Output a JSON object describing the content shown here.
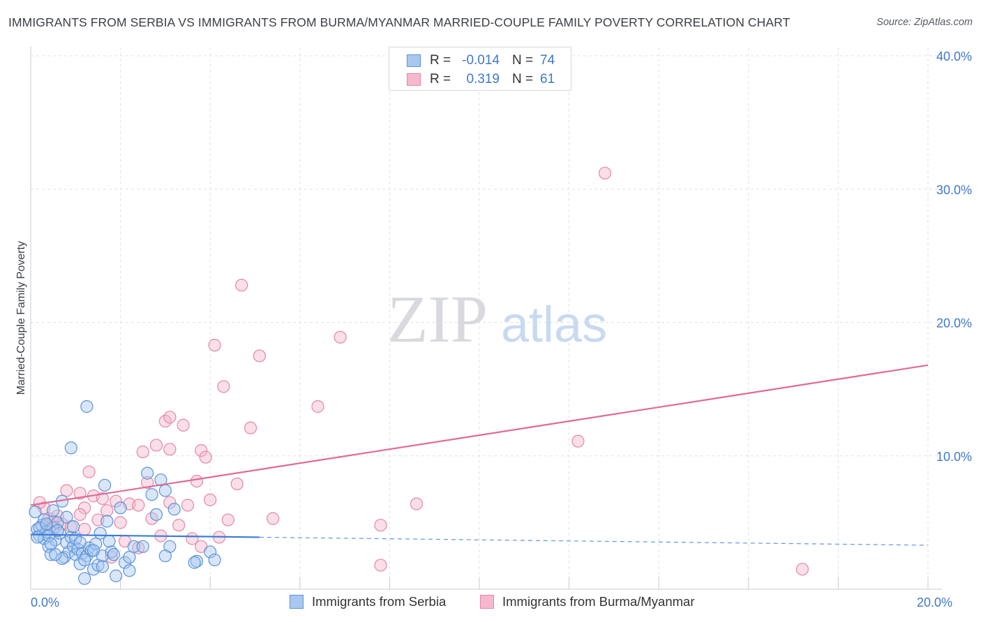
{
  "title": "IMMIGRANTS FROM SERBIA VS IMMIGRANTS FROM BURMA/MYANMAR MARRIED-COUPLE FAMILY POVERTY CORRELATION CHART",
  "source": "Source: ZipAtlas.com",
  "watermark": {
    "zip": "ZIP",
    "atlas": "atlas"
  },
  "legend": {
    "r_label": "R =",
    "n_label": "N =",
    "rows": [
      {
        "r": "-0.014",
        "n": "74"
      },
      {
        "r": "0.319",
        "n": "61"
      }
    ]
  },
  "colors": {
    "serbia_fill": "#a8c8f0",
    "serbia_stroke": "#5b93d8",
    "serbia_line": "#3a7bd5",
    "burma_fill": "#f5b8cc",
    "burma_stroke": "#e486a6",
    "burma_line": "#e06a94",
    "grid": "#dfe2e6",
    "tick_text": "#3f78c9"
  },
  "chart_data": {
    "type": "scatter",
    "title": "IMMIGRANTS FROM SERBIA VS IMMIGRANTS FROM BURMA/MYANMAR MARRIED-COUPLE FAMILY POVERTY CORRELATION CHART",
    "xlabel": "",
    "ylabel": "Married-Couple Family Poverty",
    "xlim": [
      0,
      20
    ],
    "ylim": [
      0,
      40
    ],
    "x_ticks": [
      0,
      2,
      4,
      6,
      8,
      10,
      12,
      14,
      16,
      18,
      20
    ],
    "x_tick_labels": [
      "0.0%",
      "",
      "",
      "",
      "",
      "",
      "",
      "",
      "",
      "",
      "20.0%"
    ],
    "y_ticks": [
      10,
      20,
      30,
      40
    ],
    "y_tick_labels": [
      "10.0%",
      "20.0%",
      "30.0%",
      "40.0%"
    ],
    "grid": true,
    "series": [
      {
        "name": "Immigrants from Serbia",
        "r": -0.014,
        "n": 74,
        "trend": {
          "solid": [
            [
              0,
              4.1
            ],
            [
              5.1,
              3.9
            ]
          ],
          "dashed": [
            [
              5.1,
              3.9
            ],
            [
              20,
              3.3
            ]
          ]
        },
        "points": [
          [
            0.1,
            5.8
          ],
          [
            0.15,
            4.5
          ],
          [
            0.2,
            4.0
          ],
          [
            0.25,
            4.8
          ],
          [
            0.3,
            3.8
          ],
          [
            0.35,
            4.3
          ],
          [
            0.4,
            3.2
          ],
          [
            0.45,
            2.6
          ],
          [
            0.5,
            4.6
          ],
          [
            0.55,
            3.7
          ],
          [
            0.6,
            5.0
          ],
          [
            0.65,
            4.2
          ],
          [
            0.7,
            6.6
          ],
          [
            0.75,
            2.4
          ],
          [
            0.8,
            3.5
          ],
          [
            0.85,
            2.8
          ],
          [
            0.9,
            3.9
          ],
          [
            0.95,
            3.2
          ],
          [
            1.0,
            2.6
          ],
          [
            1.05,
            3.0
          ],
          [
            1.1,
            1.9
          ],
          [
            1.15,
            2.7
          ],
          [
            1.2,
            0.8
          ],
          [
            1.25,
            2.5
          ],
          [
            1.3,
            3.1
          ],
          [
            1.35,
            2.9
          ],
          [
            1.4,
            1.5
          ],
          [
            1.45,
            3.4
          ],
          [
            1.5,
            1.8
          ],
          [
            1.55,
            4.2
          ],
          [
            1.6,
            2.5
          ],
          [
            1.65,
            7.8
          ],
          [
            1.7,
            5.1
          ],
          [
            1.75,
            3.6
          ],
          [
            1.8,
            2.8
          ],
          [
            1.25,
            13.7
          ],
          [
            0.9,
            10.6
          ],
          [
            1.9,
            1.0
          ],
          [
            2.0,
            6.1
          ],
          [
            2.1,
            2.0
          ],
          [
            2.2,
            1.4
          ],
          [
            2.3,
            3.2
          ],
          [
            2.5,
            3.2
          ],
          [
            2.6,
            8.7
          ],
          [
            2.7,
            7.1
          ],
          [
            2.8,
            5.6
          ],
          [
            2.9,
            8.2
          ],
          [
            3.0,
            7.4
          ],
          [
            3.1,
            3.2
          ],
          [
            3.2,
            6.0
          ],
          [
            3.0,
            2.5
          ],
          [
            2.2,
            2.4
          ],
          [
            3.7,
            2.1
          ],
          [
            3.65,
            2.0
          ],
          [
            0.5,
            5.9
          ],
          [
            0.6,
            4.4
          ],
          [
            0.4,
            4.0
          ],
          [
            0.3,
            5.2
          ],
          [
            0.8,
            5.4
          ],
          [
            1.0,
            3.8
          ],
          [
            0.2,
            4.6
          ],
          [
            0.15,
            3.9
          ],
          [
            1.2,
            2.2
          ],
          [
            1.4,
            2.9
          ],
          [
            1.6,
            1.7
          ],
          [
            0.7,
            2.3
          ],
          [
            0.55,
            2.6
          ],
          [
            1.1,
            3.5
          ],
          [
            0.95,
            4.7
          ],
          [
            0.45,
            3.4
          ],
          [
            0.35,
            4.9
          ],
          [
            4.0,
            2.8
          ],
          [
            4.1,
            2.2
          ],
          [
            1.85,
            2.6
          ]
        ]
      },
      {
        "name": "Immigrants from Burma/Myanmar",
        "r": 0.319,
        "n": 61,
        "trend": {
          "solid": [
            [
              0,
              6.3
            ],
            [
              20,
              16.8
            ]
          ]
        },
        "points": [
          [
            12.8,
            31.2
          ],
          [
            4.7,
            22.8
          ],
          [
            6.9,
            18.9
          ],
          [
            4.1,
            18.3
          ],
          [
            5.1,
            17.5
          ],
          [
            4.3,
            15.2
          ],
          [
            6.4,
            13.7
          ],
          [
            3.0,
            12.6
          ],
          [
            3.1,
            12.9
          ],
          [
            3.4,
            12.3
          ],
          [
            4.9,
            12.1
          ],
          [
            12.2,
            11.1
          ],
          [
            2.8,
            10.8
          ],
          [
            3.1,
            10.5
          ],
          [
            3.8,
            10.4
          ],
          [
            2.5,
            10.3
          ],
          [
            3.9,
            9.9
          ],
          [
            1.3,
            8.8
          ],
          [
            2.6,
            8.0
          ],
          [
            3.7,
            8.1
          ],
          [
            4.6,
            7.9
          ],
          [
            0.8,
            7.4
          ],
          [
            1.1,
            7.2
          ],
          [
            1.4,
            7.0
          ],
          [
            1.6,
            6.8
          ],
          [
            1.9,
            6.6
          ],
          [
            2.2,
            6.4
          ],
          [
            2.4,
            6.3
          ],
          [
            1.2,
            6.1
          ],
          [
            1.7,
            5.9
          ],
          [
            2.7,
            5.3
          ],
          [
            3.1,
            6.5
          ],
          [
            3.5,
            6.3
          ],
          [
            4.0,
            6.7
          ],
          [
            5.4,
            5.3
          ],
          [
            8.6,
            6.4
          ],
          [
            0.3,
            6.1
          ],
          [
            0.5,
            5.1
          ],
          [
            0.7,
            4.9
          ],
          [
            0.9,
            4.7
          ],
          [
            1.1,
            5.6
          ],
          [
            1.2,
            4.5
          ],
          [
            3.3,
            4.8
          ],
          [
            3.6,
            3.8
          ],
          [
            4.4,
            5.2
          ],
          [
            4.2,
            3.9
          ],
          [
            1.8,
            2.4
          ],
          [
            2.1,
            3.6
          ],
          [
            2.4,
            3.1
          ],
          [
            2.9,
            4.0
          ],
          [
            3.8,
            3.2
          ],
          [
            7.8,
            4.8
          ],
          [
            7.8,
            1.8
          ],
          [
            17.2,
            1.5
          ],
          [
            0.4,
            5.3
          ],
          [
            0.6,
            5.5
          ],
          [
            0.2,
            6.5
          ],
          [
            0.35,
            4.8
          ],
          [
            1.5,
            5.2
          ],
          [
            2.0,
            5.0
          ],
          [
            0.55,
            4.6
          ]
        ]
      }
    ]
  }
}
